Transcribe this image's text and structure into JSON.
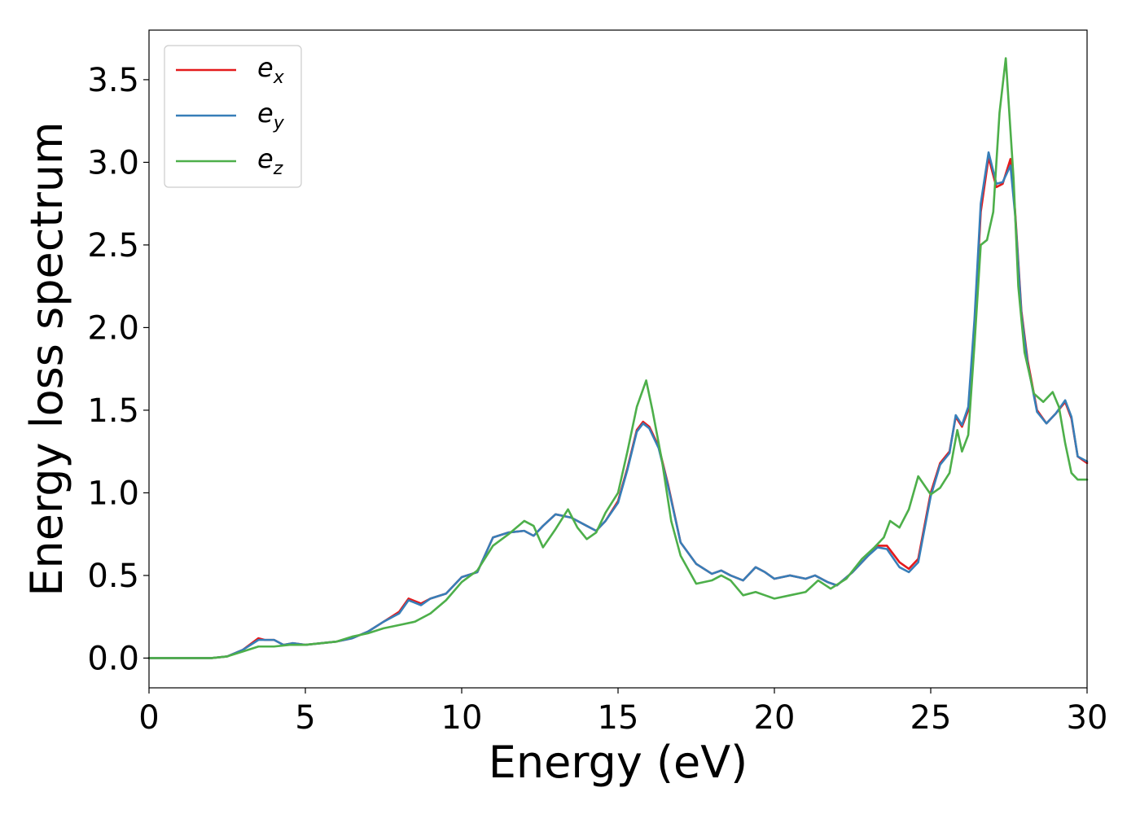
{
  "chart_data": {
    "type": "line",
    "xlabel": "Energy (eV)",
    "ylabel": "Energy loss spectrum",
    "xlim": [
      0,
      30
    ],
    "ylim": [
      -0.18,
      3.8
    ],
    "xticks": [
      0,
      5,
      10,
      15,
      20,
      25,
      30
    ],
    "xtick_labels": [
      "0",
      "5",
      "10",
      "15",
      "20",
      "25",
      "30"
    ],
    "yticks": [
      0.0,
      0.5,
      1.0,
      1.5,
      2.0,
      2.5,
      3.0,
      3.5
    ],
    "ytick_labels": [
      "0.0",
      "0.5",
      "1.0",
      "1.5",
      "2.0",
      "2.5",
      "3.0",
      "3.5"
    ],
    "grid": false,
    "legend_position": "top-left",
    "series": [
      {
        "name": "e",
        "subscript": "x",
        "color": "#e41a1c",
        "x": [
          0,
          1,
          2,
          2.5,
          3,
          3.5,
          3.7,
          4,
          4.3,
          4.6,
          5,
          5.5,
          6,
          6.5,
          7,
          7.5,
          8,
          8.3,
          8.7,
          9,
          9.5,
          10,
          10.5,
          11,
          11.5,
          12,
          12.3,
          12.6,
          13,
          13.5,
          14,
          14.3,
          14.6,
          15,
          15.3,
          15.6,
          15.8,
          16,
          16.3,
          16.6,
          17,
          17.5,
          18,
          18.3,
          18.6,
          19,
          19.4,
          19.7,
          20,
          20.5,
          21,
          21.3,
          21.7,
          22,
          22.5,
          23,
          23.3,
          23.6,
          24,
          24.3,
          24.6,
          25,
          25.3,
          25.6,
          25.8,
          26,
          26.2,
          26.4,
          26.6,
          26.85,
          27.1,
          27.3,
          27.55,
          27.7,
          27.9,
          28.1,
          28.4,
          28.7,
          29,
          29.3,
          29.5,
          29.7,
          30
        ],
        "y": [
          0.0,
          0.0,
          0.0,
          0.01,
          0.05,
          0.12,
          0.11,
          0.11,
          0.08,
          0.09,
          0.08,
          0.09,
          0.1,
          0.12,
          0.16,
          0.22,
          0.28,
          0.36,
          0.33,
          0.36,
          0.39,
          0.49,
          0.52,
          0.73,
          0.76,
          0.77,
          0.74,
          0.8,
          0.87,
          0.85,
          0.8,
          0.77,
          0.83,
          0.95,
          1.15,
          1.38,
          1.43,
          1.4,
          1.28,
          1.05,
          0.7,
          0.57,
          0.51,
          0.53,
          0.5,
          0.47,
          0.55,
          0.52,
          0.48,
          0.5,
          0.48,
          0.5,
          0.46,
          0.44,
          0.52,
          0.62,
          0.68,
          0.68,
          0.58,
          0.54,
          0.6,
          1.0,
          1.18,
          1.25,
          1.46,
          1.4,
          1.5,
          2.0,
          2.7,
          3.03,
          2.85,
          2.87,
          3.02,
          2.7,
          2.1,
          1.8,
          1.5,
          1.42,
          1.48,
          1.55,
          1.45,
          1.22,
          1.18
        ]
      },
      {
        "name": "e",
        "subscript": "y",
        "color": "#377eb8",
        "x": [
          0,
          1,
          2,
          2.5,
          3,
          3.5,
          3.7,
          4,
          4.3,
          4.6,
          5,
          5.5,
          6,
          6.5,
          7,
          7.5,
          8,
          8.3,
          8.7,
          9,
          9.5,
          10,
          10.5,
          11,
          11.5,
          12,
          12.3,
          12.6,
          13,
          13.5,
          14,
          14.3,
          14.6,
          15,
          15.3,
          15.6,
          15.8,
          16,
          16.3,
          16.6,
          17,
          17.5,
          18,
          18.3,
          18.6,
          19,
          19.4,
          19.7,
          20,
          20.5,
          21,
          21.3,
          21.7,
          22,
          22.5,
          23,
          23.3,
          23.6,
          24,
          24.3,
          24.6,
          25,
          25.3,
          25.6,
          25.8,
          26,
          26.2,
          26.4,
          26.6,
          26.85,
          27.1,
          27.3,
          27.55,
          27.7,
          27.9,
          28.1,
          28.4,
          28.7,
          29,
          29.3,
          29.5,
          29.7,
          30
        ],
        "y": [
          0.0,
          0.0,
          0.0,
          0.01,
          0.05,
          0.11,
          0.11,
          0.11,
          0.08,
          0.09,
          0.08,
          0.09,
          0.1,
          0.12,
          0.16,
          0.22,
          0.27,
          0.35,
          0.32,
          0.36,
          0.39,
          0.49,
          0.52,
          0.73,
          0.76,
          0.77,
          0.74,
          0.8,
          0.87,
          0.85,
          0.8,
          0.77,
          0.83,
          0.94,
          1.14,
          1.37,
          1.42,
          1.39,
          1.27,
          1.04,
          0.7,
          0.57,
          0.51,
          0.53,
          0.5,
          0.47,
          0.55,
          0.52,
          0.48,
          0.5,
          0.48,
          0.5,
          0.46,
          0.44,
          0.52,
          0.62,
          0.67,
          0.66,
          0.55,
          0.52,
          0.58,
          0.98,
          1.17,
          1.24,
          1.47,
          1.41,
          1.52,
          2.05,
          2.75,
          3.06,
          2.87,
          2.88,
          2.98,
          2.68,
          2.08,
          1.78,
          1.49,
          1.42,
          1.48,
          1.56,
          1.46,
          1.22,
          1.19
        ]
      },
      {
        "name": "e",
        "subscript": "z",
        "color": "#4daf4a",
        "x": [
          0,
          1,
          2,
          2.5,
          3,
          3.5,
          3.8,
          4,
          4.5,
          5,
          5.5,
          6,
          6.5,
          7,
          7.5,
          8,
          8.5,
          9,
          9.5,
          10,
          10.5,
          11,
          11.5,
          12,
          12.3,
          12.6,
          13,
          13.4,
          13.7,
          14,
          14.3,
          14.6,
          15,
          15.3,
          15.6,
          15.9,
          16.1,
          16.4,
          16.7,
          17,
          17.5,
          18,
          18.3,
          18.6,
          19,
          19.4,
          19.7,
          20,
          20.5,
          21,
          21.4,
          21.8,
          22.3,
          22.8,
          23.2,
          23.5,
          23.7,
          24,
          24.3,
          24.6,
          25,
          25.3,
          25.6,
          25.85,
          26,
          26.2,
          26.4,
          26.6,
          26.8,
          27,
          27.2,
          27.4,
          27.65,
          27.8,
          28,
          28.3,
          28.6,
          28.9,
          29.1,
          29.3,
          29.5,
          29.7,
          30
        ],
        "y": [
          0.0,
          0.0,
          0.0,
          0.01,
          0.04,
          0.07,
          0.07,
          0.07,
          0.08,
          0.08,
          0.09,
          0.1,
          0.13,
          0.15,
          0.18,
          0.2,
          0.22,
          0.27,
          0.35,
          0.46,
          0.53,
          0.68,
          0.75,
          0.83,
          0.8,
          0.67,
          0.78,
          0.9,
          0.79,
          0.72,
          0.76,
          0.88,
          1.0,
          1.25,
          1.52,
          1.68,
          1.5,
          1.2,
          0.83,
          0.62,
          0.45,
          0.47,
          0.5,
          0.47,
          0.38,
          0.4,
          0.38,
          0.36,
          0.38,
          0.4,
          0.47,
          0.42,
          0.48,
          0.6,
          0.67,
          0.73,
          0.83,
          0.79,
          0.9,
          1.1,
          0.99,
          1.03,
          1.12,
          1.38,
          1.25,
          1.35,
          1.9,
          2.5,
          2.53,
          2.7,
          3.3,
          3.63,
          2.9,
          2.25,
          1.85,
          1.6,
          1.55,
          1.61,
          1.52,
          1.3,
          1.12,
          1.08,
          1.08
        ]
      }
    ]
  }
}
